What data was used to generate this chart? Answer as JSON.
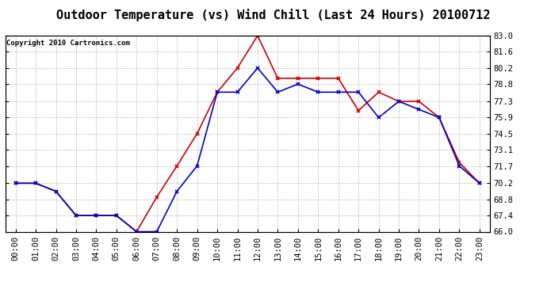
{
  "title": "Outdoor Temperature (vs) Wind Chill (Last 24 Hours) 20100712",
  "copyright_text": "Copyright 2010 Cartronics.com",
  "hours": [
    "00:00",
    "01:00",
    "02:00",
    "03:00",
    "04:00",
    "05:00",
    "06:00",
    "07:00",
    "08:00",
    "09:00",
    "10:00",
    "11:00",
    "12:00",
    "13:00",
    "14:00",
    "15:00",
    "16:00",
    "17:00",
    "18:00",
    "19:00",
    "20:00",
    "21:00",
    "22:00",
    "23:00"
  ],
  "temp": [
    70.2,
    70.2,
    69.5,
    67.4,
    67.4,
    67.4,
    66.0,
    69.0,
    71.7,
    74.5,
    78.1,
    80.2,
    83.0,
    79.3,
    79.3,
    79.3,
    79.3,
    76.5,
    78.1,
    77.3,
    77.3,
    75.9,
    72.0,
    70.2
  ],
  "windchill": [
    70.2,
    70.2,
    69.5,
    67.4,
    67.4,
    67.4,
    66.0,
    66.0,
    69.5,
    71.7,
    78.1,
    78.1,
    80.2,
    78.1,
    78.8,
    78.1,
    78.1,
    78.1,
    75.9,
    77.3,
    76.6,
    75.9,
    71.7,
    70.2
  ],
  "temp_color": "#cc0000",
  "windchill_color": "#0000cc",
  "bg_color": "#ffffff",
  "grid_color": "#bbbbbb",
  "ylim": [
    66.0,
    83.0
  ],
  "yticks": [
    66.0,
    67.4,
    68.8,
    70.2,
    71.7,
    73.1,
    74.5,
    75.9,
    77.3,
    78.8,
    80.2,
    81.6,
    83.0
  ],
  "title_fontsize": 11,
  "copyright_fontsize": 6.5,
  "tick_fontsize": 7.5,
  "marker": "x",
  "marker_size": 3,
  "marker_edge_width": 1.2,
  "line_width": 1.2
}
